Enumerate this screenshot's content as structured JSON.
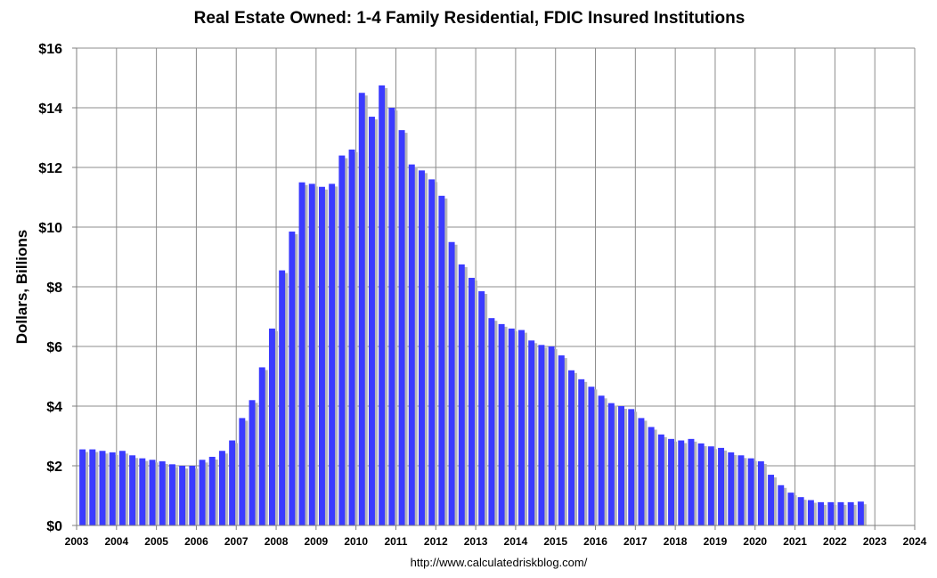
{
  "chart_data": {
    "type": "bar",
    "title": "Real Estate Owned: 1-4 Family Residential, FDIC Insured Institutions",
    "ylabel": "Dollars, Billions",
    "xlabel": "",
    "source": "http://www.calculatedriskblog.com/",
    "ylim": [
      0,
      16
    ],
    "xlim": [
      2003,
      2024
    ],
    "yticks": [
      0,
      2,
      4,
      6,
      8,
      10,
      12,
      14,
      16
    ],
    "ytick_labels": [
      "$0",
      "$2",
      "$4",
      "$6",
      "$8",
      "$10",
      "$12",
      "$14",
      "$16"
    ],
    "xticks": [
      2003,
      2004,
      2005,
      2006,
      2007,
      2008,
      2009,
      2010,
      2011,
      2012,
      2013,
      2014,
      2015,
      2016,
      2017,
      2018,
      2019,
      2020,
      2021,
      2022,
      2023,
      2024
    ],
    "xtick_labels": [
      "2003",
      "2004",
      "2005",
      "2006",
      "2007",
      "2008",
      "2009",
      "2010",
      "2011",
      "2012",
      "2013",
      "2014",
      "2015",
      "2016",
      "2017",
      "2018",
      "2019",
      "2020",
      "2021",
      "2022",
      "2023",
      "2024"
    ],
    "grid": true,
    "bar_color": "#3b3bff",
    "frequency": "quarterly",
    "start": "2003 Q1",
    "values": [
      2.55,
      2.55,
      2.5,
      2.45,
      2.5,
      2.35,
      2.25,
      2.2,
      2.15,
      2.05,
      2.0,
      2.0,
      2.2,
      2.3,
      2.5,
      2.85,
      3.6,
      4.2,
      5.3,
      6.6,
      8.55,
      9.85,
      11.5,
      11.45,
      11.35,
      11.45,
      12.4,
      12.6,
      14.5,
      13.7,
      14.75,
      14.0,
      13.25,
      12.1,
      11.9,
      11.6,
      11.05,
      9.5,
      8.75,
      8.3,
      7.85,
      6.95,
      6.75,
      6.6,
      6.55,
      6.2,
      6.05,
      6.0,
      5.7,
      5.2,
      4.9,
      4.65,
      4.35,
      4.1,
      4.0,
      3.9,
      3.6,
      3.3,
      3.05,
      2.9,
      2.85,
      2.9,
      2.75,
      2.65,
      2.6,
      2.45,
      2.35,
      2.25,
      2.15,
      1.7,
      1.35,
      1.1,
      0.95,
      0.85,
      0.78,
      0.78,
      0.78,
      0.78,
      0.8
    ]
  }
}
